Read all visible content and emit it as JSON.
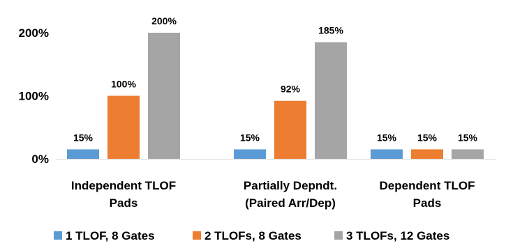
{
  "chart_data": {
    "type": "bar",
    "title": "",
    "categories": [
      [
        "Independent TLOF",
        "Pads"
      ],
      [
        "Partially Depndt.",
        "(Paired Arr/Dep)"
      ],
      [
        "Dependent TLOF",
        "Pads"
      ]
    ],
    "series": [
      {
        "name": "1 TLOF, 8 Gates",
        "color": "#5B9BD5",
        "values": [
          15,
          15,
          15
        ],
        "labels": [
          "15%",
          "15%",
          "15%"
        ]
      },
      {
        "name": "2 TLOFs, 8 Gates",
        "color": "#ED7D31",
        "values": [
          100,
          92,
          15
        ],
        "labels": [
          "100%",
          "92%",
          "15%"
        ]
      },
      {
        "name": "3 TLOFs, 12 Gates",
        "color": "#A5A5A5",
        "values": [
          200,
          185,
          15
        ],
        "labels": [
          "200%",
          "185%",
          "15%"
        ]
      }
    ],
    "y_ticks": [
      {
        "value": 0,
        "label": "0%"
      },
      {
        "value": 100,
        "label": "100%"
      },
      {
        "value": 200,
        "label": "200%"
      }
    ],
    "ylim": [
      0,
      200
    ],
    "xlabel": "",
    "ylabel": "",
    "legend_position": "bottom",
    "grid": false
  }
}
